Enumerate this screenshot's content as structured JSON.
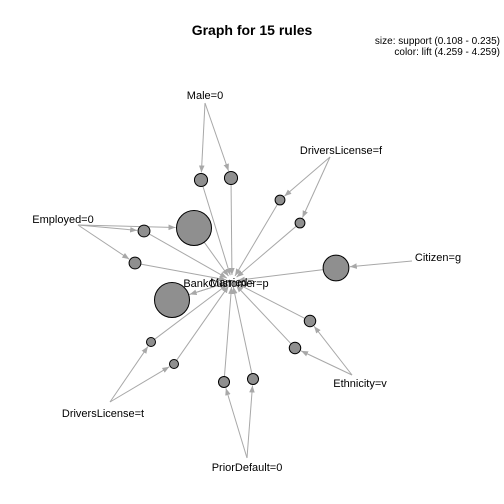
{
  "title": "Graph for 15 rules",
  "legend": {
    "size": "size: support (0.108 - 0.235)",
    "color": "color: lift (4.259 - 4.259)"
  },
  "colors": {
    "edge": "#a8a8a8",
    "rule_fill": "#8f8f8f",
    "outline": "#000000"
  },
  "items": [
    {
      "id": "male",
      "label": "Male=0"
    },
    {
      "id": "dl_f",
      "label": "DriversLicense=f"
    },
    {
      "id": "employed",
      "label": "Employed=0"
    },
    {
      "id": "citizen",
      "label": "Citizen=g"
    },
    {
      "id": "ethnicity",
      "label": "Ethnicity=v"
    },
    {
      "id": "prior",
      "label": "PriorDefault=0"
    },
    {
      "id": "dl_t",
      "label": "DriversLicense=t"
    },
    {
      "id": "bank",
      "label": "BankCustomer=p"
    },
    {
      "id": "married",
      "label": "Married="
    }
  ],
  "rules": [
    {
      "id": "r1",
      "support": 0.128,
      "lhs": [
        "male"
      ],
      "rhs": "bank"
    },
    {
      "id": "r2",
      "support": 0.128,
      "lhs": [
        "male"
      ],
      "rhs": "bank"
    },
    {
      "id": "r3",
      "support": 0.112,
      "lhs": [
        "dl_f"
      ],
      "rhs": "bank"
    },
    {
      "id": "r4",
      "support": 0.112,
      "lhs": [
        "dl_f"
      ],
      "rhs": "bank"
    },
    {
      "id": "r5",
      "support": 0.19,
      "lhs": [
        "citizen"
      ],
      "rhs": "bank"
    },
    {
      "id": "r6",
      "support": 0.12,
      "lhs": [
        "ethnicity"
      ],
      "rhs": "bank"
    },
    {
      "id": "r7",
      "support": 0.12,
      "lhs": [
        "ethnicity"
      ],
      "rhs": "bank"
    },
    {
      "id": "r8",
      "support": 0.118,
      "lhs": [
        "prior"
      ],
      "rhs": "bank"
    },
    {
      "id": "r9",
      "support": 0.118,
      "lhs": [
        "prior"
      ],
      "rhs": "bank"
    },
    {
      "id": "r10",
      "support": 0.108,
      "lhs": [
        "dl_t"
      ],
      "rhs": "bank"
    },
    {
      "id": "r11",
      "support": 0.108,
      "lhs": [
        "dl_t"
      ],
      "rhs": "bank"
    },
    {
      "id": "r12",
      "support": 0.235,
      "lhs": [
        "employed"
      ],
      "rhs": "bank"
    },
    {
      "id": "r13",
      "support": 0.122,
      "lhs": [
        "employed"
      ],
      "rhs": "bank"
    },
    {
      "id": "r14",
      "support": 0.122,
      "lhs": [
        "employed"
      ],
      "rhs": "bank"
    },
    {
      "id": "r15",
      "support": 0.235,
      "lhs": [
        "married"
      ],
      "rhs": "bank"
    }
  ]
}
